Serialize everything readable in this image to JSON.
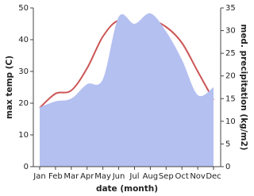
{
  "chart_data": {
    "type": "line-area",
    "categories": [
      "Jan",
      "Feb",
      "Mar",
      "Apr",
      "May",
      "Jun",
      "Jul",
      "Aug",
      "Sep",
      "Oct",
      "Nov",
      "Dec"
    ],
    "x_label": "date (month)",
    "y_label": "max temp (C)",
    "y2_label": "med. precipitation (kg/m2)",
    "ylim": [
      0,
      50
    ],
    "yticks": [
      0,
      10,
      20,
      30,
      40,
      50
    ],
    "y2lim": [
      0,
      35
    ],
    "y2ticks": [
      0,
      5,
      10,
      15,
      20,
      25,
      30,
      35
    ],
    "series": [
      {
        "name": "max temp",
        "type": "line",
        "color": "#cc5555",
        "values": [
          18.5,
          23,
          24,
          31,
          41,
          46,
          43,
          46,
          44,
          39,
          30,
          21
        ]
      },
      {
        "name": "precipitation",
        "type": "area",
        "axis": "y2",
        "color": "#b4c0f0",
        "values": [
          13.1,
          14.4,
          15,
          18.2,
          19.3,
          33,
          31.5,
          33.8,
          29.8,
          23.6,
          15.8,
          17.5
        ]
      }
    ]
  }
}
